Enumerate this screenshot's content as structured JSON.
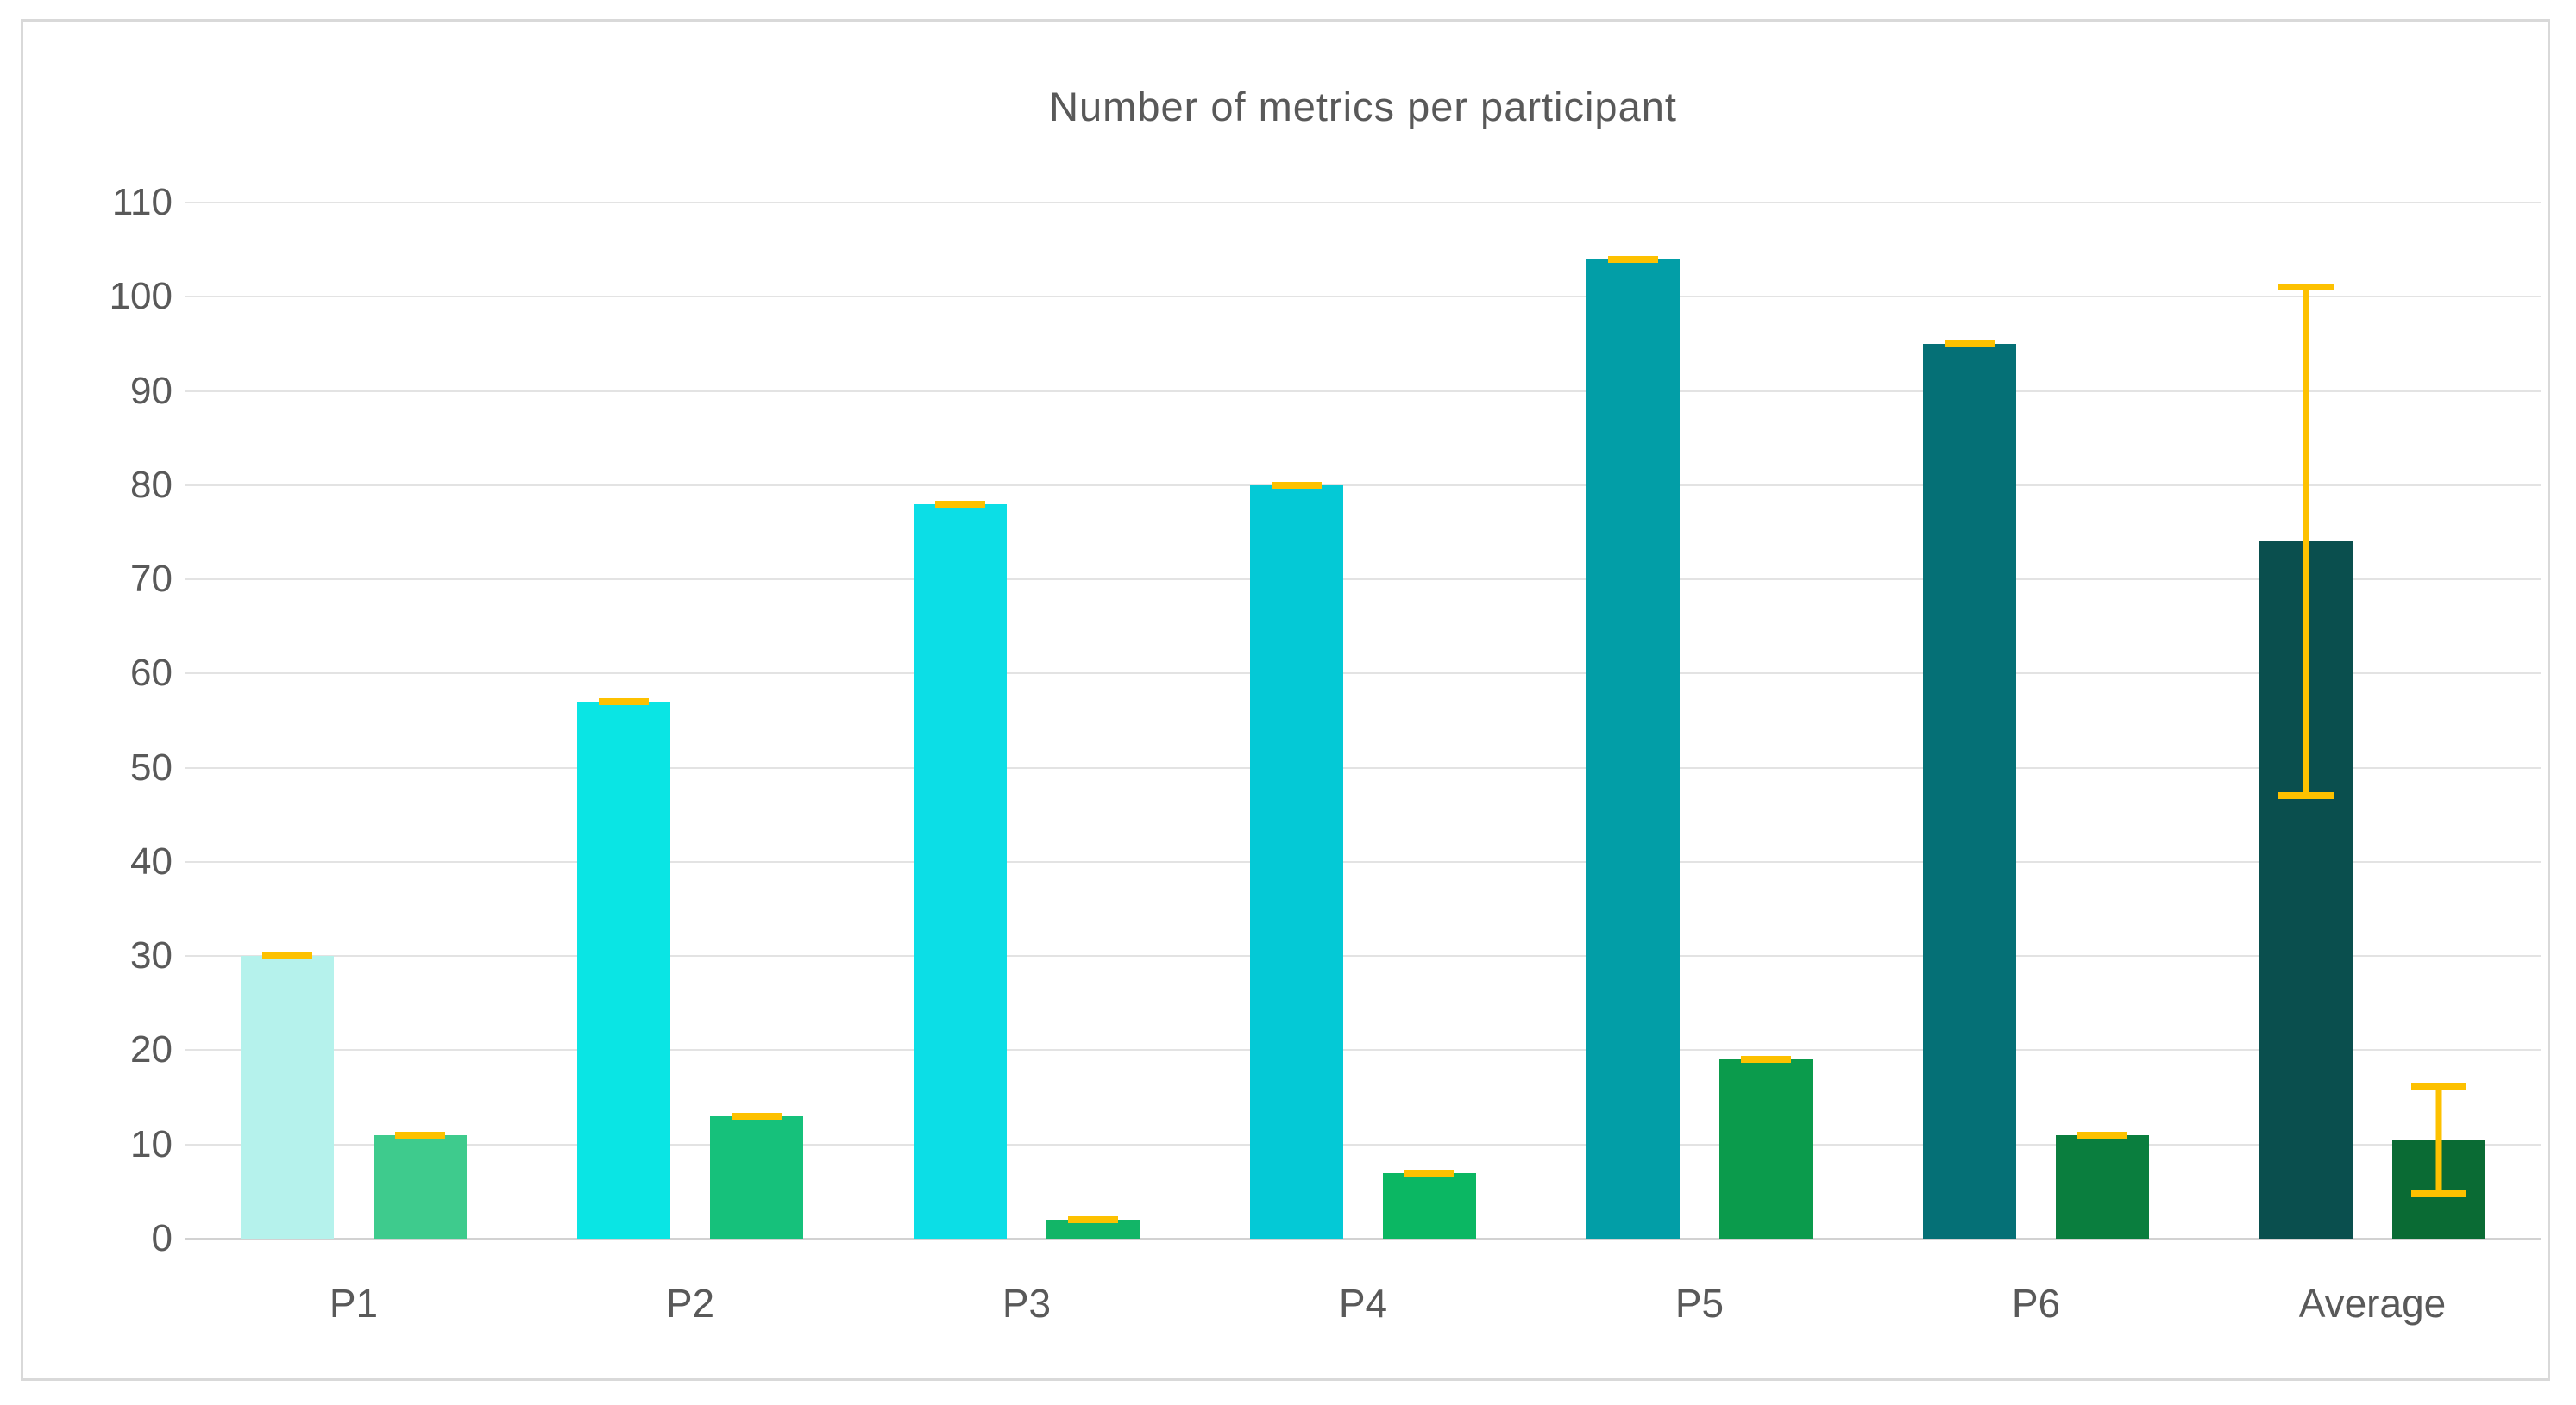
{
  "chart_data": {
    "type": "bar",
    "title": "Number of metrics per participant",
    "categories": [
      "P1",
      "P2",
      "P3",
      "P4",
      "P5",
      "P6",
      "Average"
    ],
    "series": [
      {
        "values": [
          30,
          57,
          78,
          80,
          104,
          95,
          74
        ],
        "errors": [
          0,
          0,
          0,
          0,
          0,
          0,
          27
        ],
        "colors": [
          "#b5f2ec",
          "#0ae5e4",
          "#0cdee6",
          "#04c9d6",
          "#029ea7",
          "#057076",
          "#0a4f4e"
        ]
      },
      {
        "values": [
          11,
          13,
          2,
          7,
          19,
          11,
          10.5
        ],
        "errors": [
          0,
          0,
          0,
          0,
          0,
          0,
          5.7
        ],
        "colors": [
          "#3ecb8d",
          "#16c17b",
          "#12b567",
          "#0bb763",
          "#0b9b4c",
          "#0a7e3e",
          "#0a6b34"
        ]
      }
    ],
    "ylim": [
      0,
      110
    ],
    "yticks": [
      0,
      10,
      20,
      30,
      40,
      50,
      60,
      70,
      80,
      90,
      100,
      110
    ],
    "grid": true,
    "legend": false,
    "error_bar_color": "#fdc100",
    "text_color": "#595959",
    "gridline_color": "#e3e3e3",
    "axis_line_color": "#d2d2d2",
    "frame_border_color": "#d9d9d9"
  }
}
